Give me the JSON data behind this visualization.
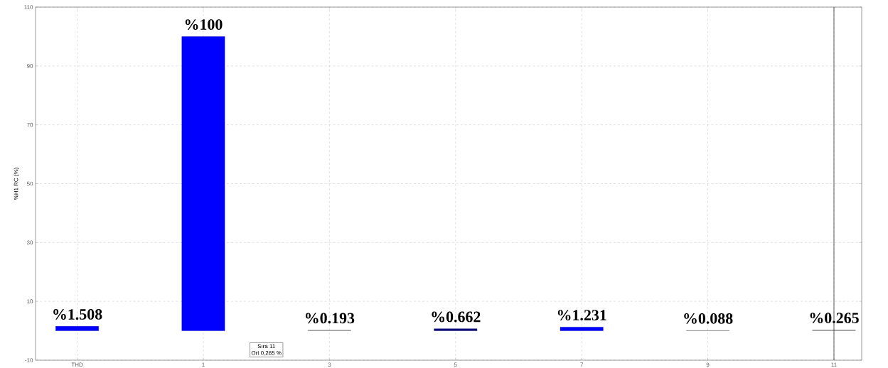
{
  "chart_data": {
    "type": "bar",
    "ylabel": "%H1 RC (%)",
    "categories": [
      "THD",
      "1",
      "3",
      "5",
      "7",
      "9",
      "11"
    ],
    "values": [
      1.508,
      100,
      0.193,
      0.662,
      1.231,
      0.088,
      0.265
    ],
    "colors": [
      "#0000ff",
      "#0000ff",
      "#999999",
      "#000080",
      "#0000ff",
      "#999999",
      "#999999"
    ],
    "value_labels": [
      "%1.508",
      "%100",
      "%0.193",
      "%0.662",
      "%1.231",
      "%0.088",
      "%0.265"
    ],
    "ylim": [
      -10,
      110
    ],
    "yticks": [
      -10,
      10,
      30,
      50,
      70,
      90,
      110
    ],
    "grid": true,
    "ref_lines": [
      {
        "axis": "x",
        "value": "11",
        "color": "#333333"
      }
    ],
    "annotations": [
      "Sıra 11",
      "Ort 0,265 %"
    ]
  }
}
